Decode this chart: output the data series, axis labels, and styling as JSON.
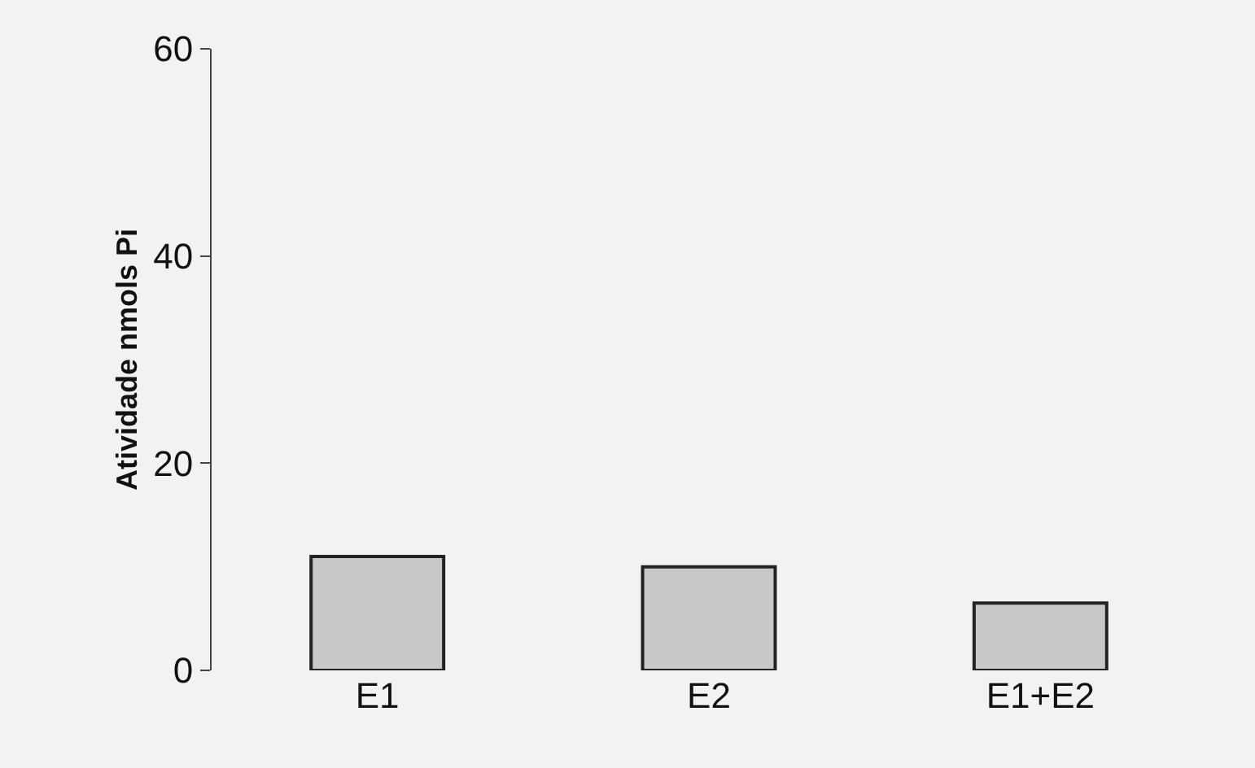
{
  "chart_data": {
    "type": "bar",
    "ylabel": "Atividade nmols Pi",
    "categories": [
      "E1",
      "E2",
      "E1+E2"
    ],
    "values": [
      11,
      10,
      6.5
    ],
    "color": "#c8c8c8",
    "ylim": [
      0,
      60
    ],
    "yticks": [
      0,
      20,
      40,
      60
    ],
    "grid": false
  }
}
